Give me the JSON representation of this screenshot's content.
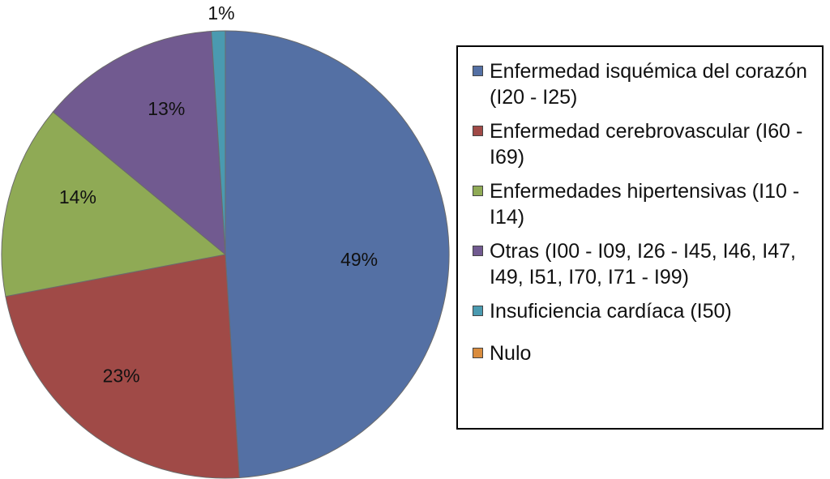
{
  "chart_data": {
    "type": "pie",
    "title": "",
    "slices": [
      {
        "label": "Enfermedad isquémica del corazón (I20 - I25)",
        "value": 49,
        "data_label": "49%",
        "color": "#5470A4"
      },
      {
        "label": "Enfermedad cerebrovascular (I60 - I69)",
        "value": 23,
        "data_label": "23%",
        "color": "#A04A47"
      },
      {
        "label": "Enfermedades hipertensivas (I10 - I14)",
        "value": 14,
        "data_label": "14%",
        "color": "#8FAA55"
      },
      {
        "label": "Otras (I00 - I09, I26 - I45, I46, I47, I49, I51, I70, I71 - I99)",
        "value": 13,
        "data_label": "13%",
        "color": "#715A90"
      },
      {
        "label": "Insuficiencia cardíaca (I50)",
        "value": 1,
        "data_label": "1%",
        "color": "#4A9AB0"
      },
      {
        "label": "Nulo",
        "value": 0,
        "data_label": "",
        "color": "#D98C3E"
      }
    ],
    "legend_position": "right"
  },
  "legend": {
    "items": [
      {
        "text": "Enfermedad isquémica del corazón (I20 - I25)",
        "color": "#5470A4"
      },
      {
        "text": "Enfermedad cerebrovascular (I60 - I69)",
        "color": "#A04A47"
      },
      {
        "text": "Enfermedades hipertensivas (I10 - I14)",
        "color": "#8FAA55"
      },
      {
        "text": "Otras (I00 - I09, I26 - I45, I46, I47, I49, I51, I70, I71 - I99)",
        "color": "#715A90"
      },
      {
        "text": "Insuficiencia cardíaca (I50)",
        "color": "#4A9AB0"
      },
      {
        "text": "Nulo",
        "color": "#D98C3E"
      }
    ]
  }
}
